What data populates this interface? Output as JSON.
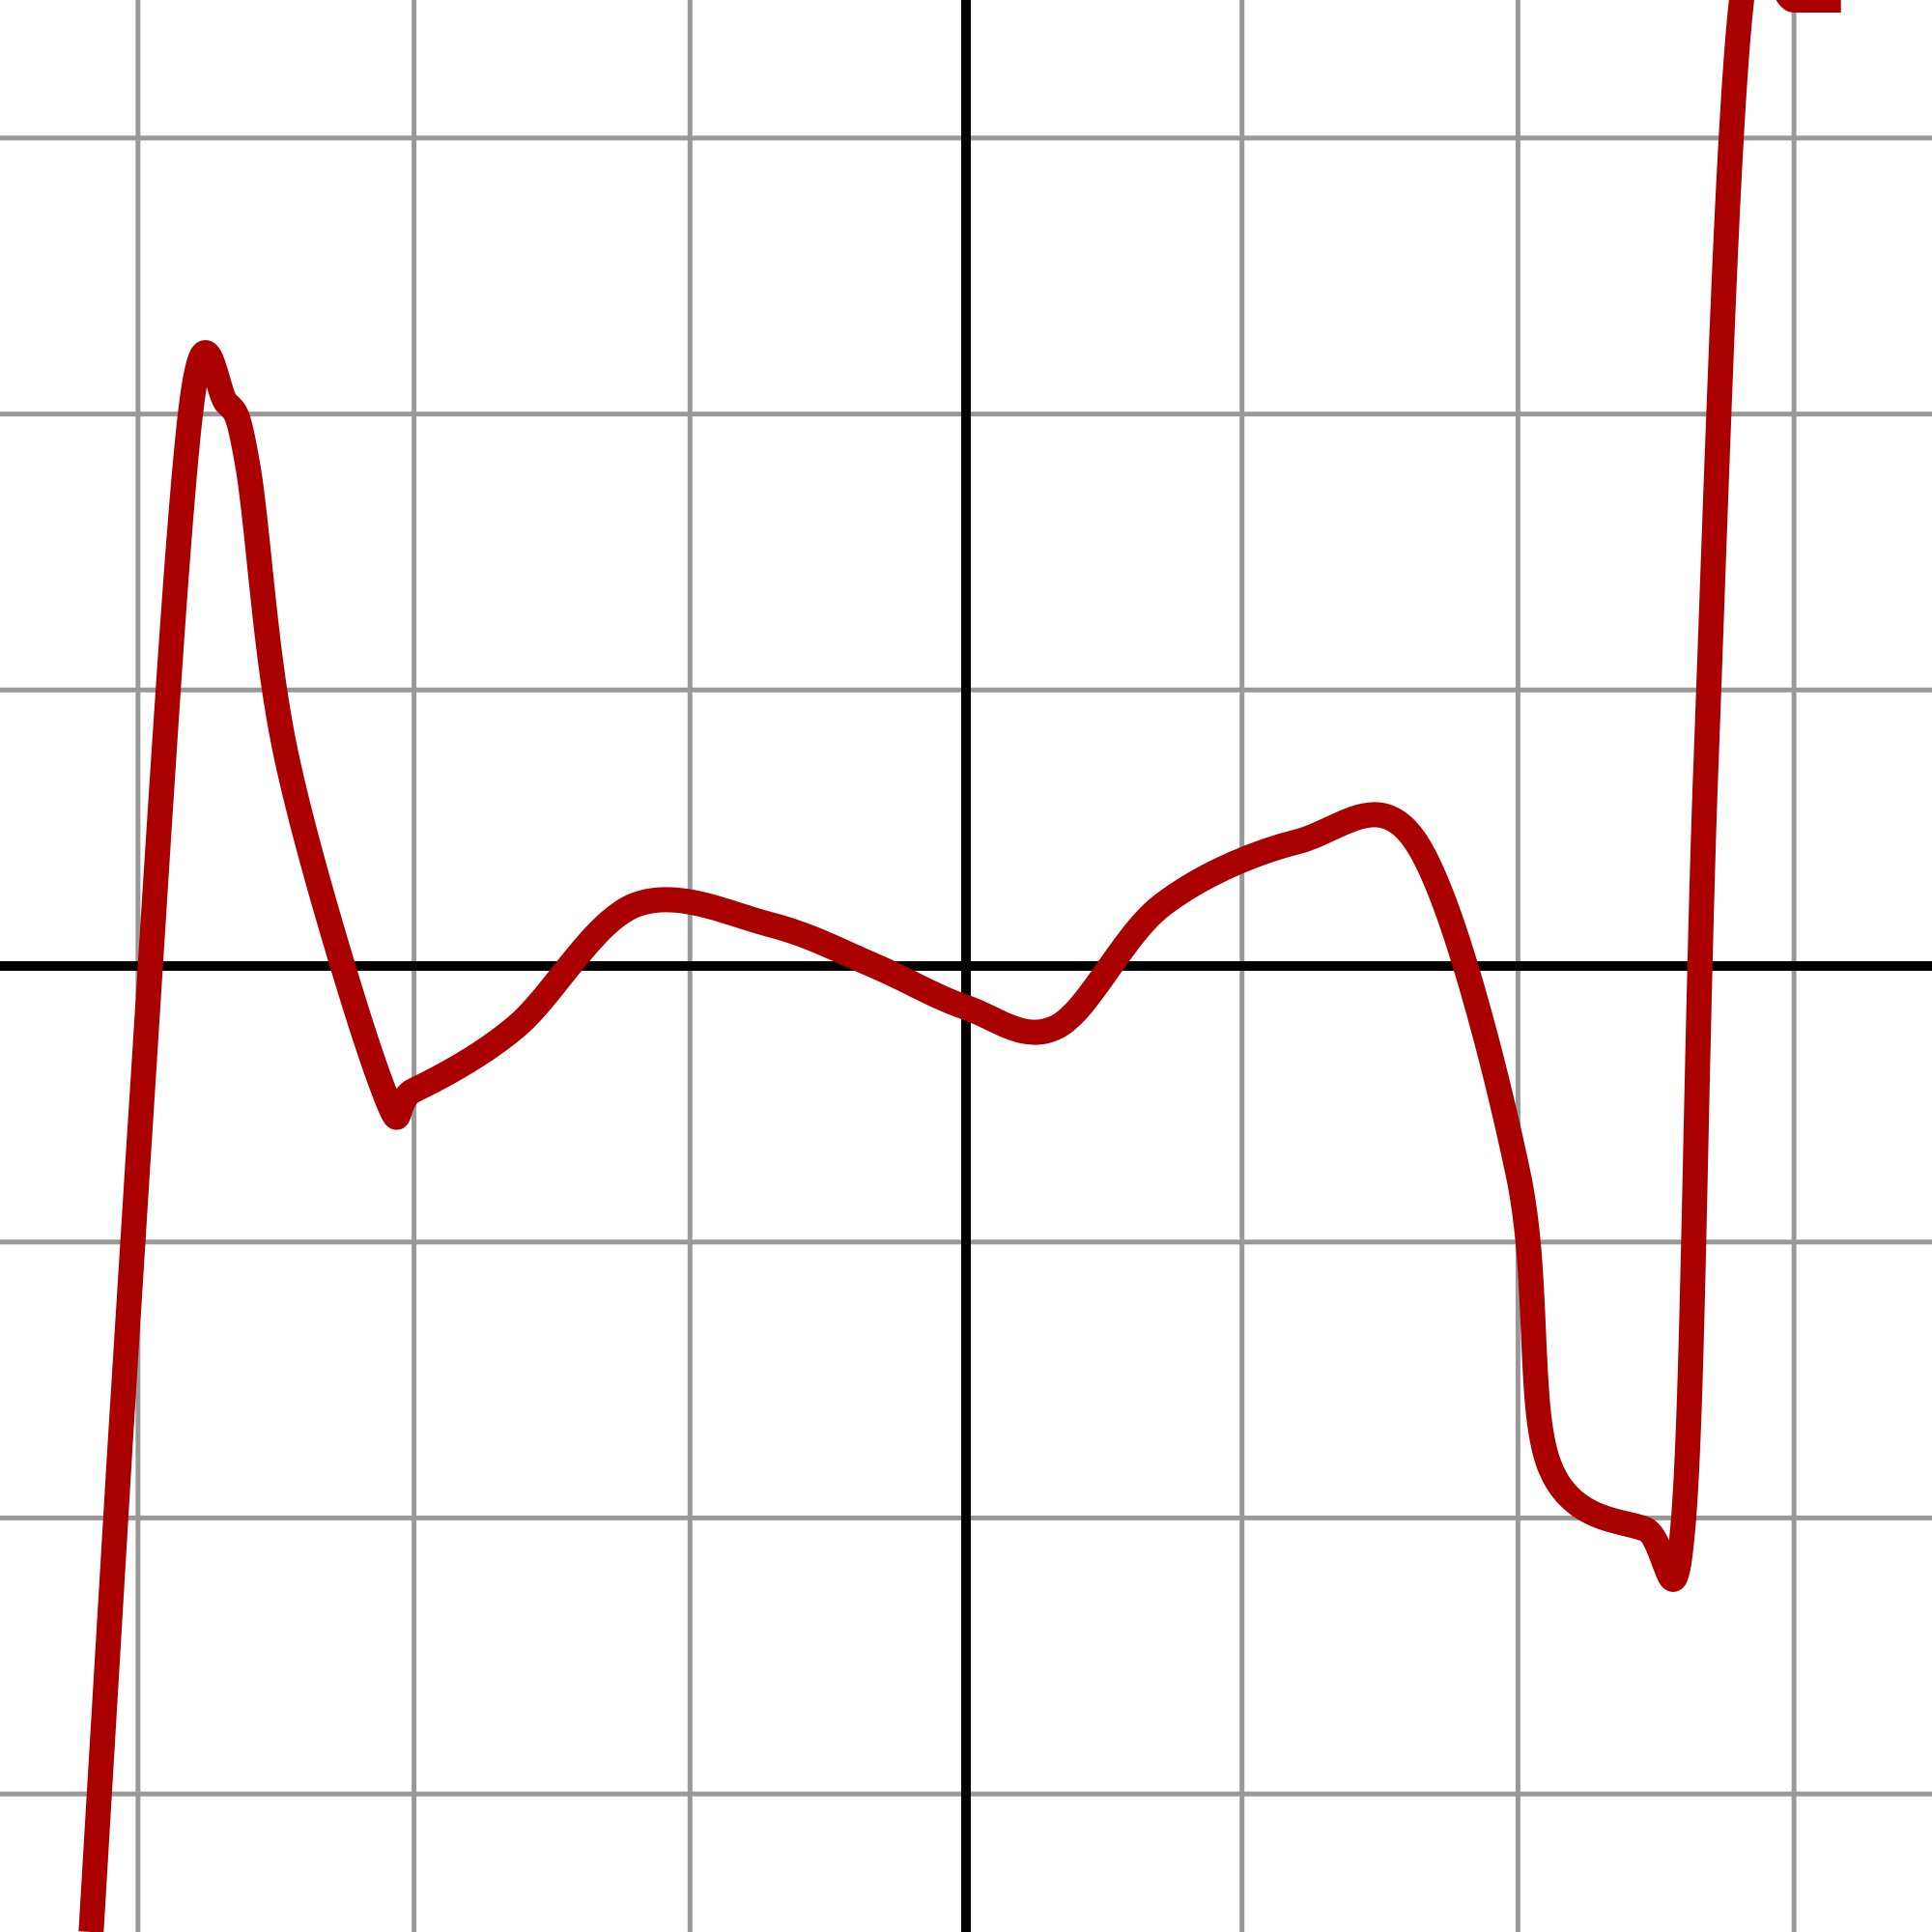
{
  "chart_data": {
    "type": "line",
    "title": "",
    "xlabel": "",
    "ylabel": "",
    "xlim": [
      -3.5,
      3.5
    ],
    "ylim": [
      -3.5,
      3.5
    ],
    "grid": true,
    "grid_step": 1,
    "legend": "none",
    "colors": {
      "background": "#ffffff",
      "grid": "#999999",
      "axes": "#000000",
      "curve": "#aa0000"
    },
    "series": [
      {
        "x": [
          -3.17,
          -3.0,
          -2.81,
          -2.68,
          -2.6,
          -2.46,
          -2.11,
          -2.0,
          -1.63,
          -1.2,
          -0.71,
          -0.33,
          0.0,
          0.33,
          0.71,
          1.2,
          1.63,
          2.0,
          2.11,
          2.46,
          2.6,
          2.68,
          2.81,
          3.0,
          3.17
        ],
        "y": [
          -3.5,
          -0.7,
          2.0,
          2.04,
          1.8,
          0.75,
          -0.45,
          -0.45,
          -0.22,
          0.22,
          0.15,
          0.0,
          -0.15,
          -0.22,
          0.22,
          0.45,
          0.45,
          -0.75,
          -1.8,
          -2.04,
          -2.0,
          0.7,
          3.5,
          3.5,
          3.5
        ]
      }
    ]
  }
}
